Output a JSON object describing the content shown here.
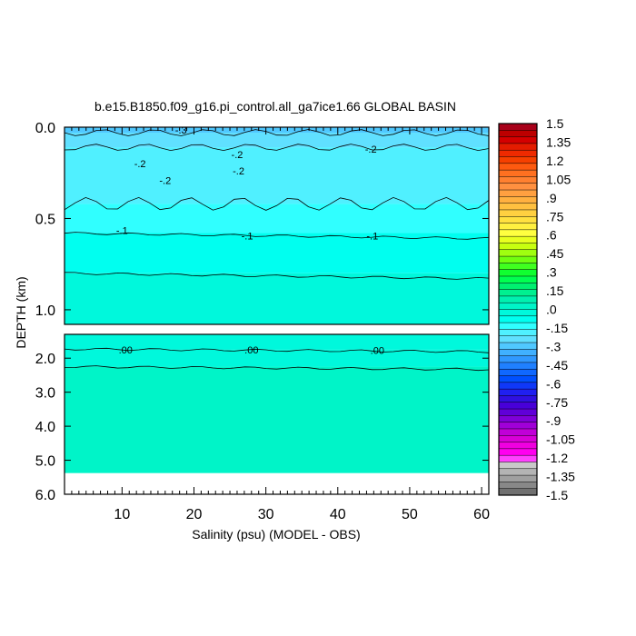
{
  "chart_data": {
    "type": "heatmap",
    "title": "b.e15.B1850.f09_g16.pi_control.all_ga7ice1.66 GLOBAL BASIN",
    "xlabel": "Salinity (psu) (MODEL - OBS)",
    "ylabel": "DEPTH (km)",
    "xlim": [
      2,
      61
    ],
    "x_ticks": [
      "10",
      "20",
      "30",
      "40",
      "50",
      "60"
    ],
    "panels": [
      {
        "name": "upper",
        "ylim": [
          0.0,
          1.08
        ],
        "y_ticks": [
          "0.0",
          "0.5",
          "1.0"
        ],
        "y_tick_values": [
          0.0,
          0.5,
          1.0
        ],
        "bands": [
          {
            "from": 0.0,
            "to": 0.03,
            "value": -0.3
          },
          {
            "from": 0.03,
            "to": 0.11,
            "value": -0.25
          },
          {
            "from": 0.11,
            "to": 0.42,
            "value": -0.2
          },
          {
            "from": 0.42,
            "to": 0.58,
            "value": -0.15
          },
          {
            "from": 0.58,
            "to": 0.8,
            "value": -0.1
          },
          {
            "from": 0.8,
            "to": 1.08,
            "value": -0.05
          }
        ],
        "contour_labels": [
          {
            "text": "-.3",
            "x": 18.2,
            "y": 0.015
          },
          {
            "text": "-.2",
            "x": 26.0,
            "y": 0.15
          },
          {
            "text": "-.2",
            "x": 44.6,
            "y": 0.12
          },
          {
            "text": "-.2",
            "x": 12.5,
            "y": 0.2
          },
          {
            "text": "-.2",
            "x": 26.2,
            "y": 0.24
          },
          {
            "text": "-.2",
            "x": 16.0,
            "y": 0.29
          },
          {
            "text": "-.1",
            "x": 10.0,
            "y": 0.565
          },
          {
            "text": "-.1",
            "x": 27.4,
            "y": 0.595
          },
          {
            "text": "-.1",
            "x": 44.8,
            "y": 0.595
          }
        ]
      },
      {
        "name": "lower",
        "ylim": [
          1.3,
          6.0
        ],
        "y_ticks": [
          "2.0",
          "3.0",
          "4.0",
          "5.0",
          "6.0"
        ],
        "y_tick_values": [
          2.0,
          3.0,
          4.0,
          5.0,
          6.0
        ],
        "data_bottom": 5.38,
        "bands": [
          {
            "from": 1.3,
            "to": 1.73,
            "value": 0.0
          },
          {
            "from": 1.73,
            "to": 2.25,
            "value": 0.0
          },
          {
            "from": 2.25,
            "to": 5.38,
            "value": 0.05
          }
        ],
        "contour_labels": [
          {
            "text": ".00",
            "x": 10.5,
            "y": 1.75
          },
          {
            "text": ".00",
            "x": 28.0,
            "y": 1.75
          },
          {
            "text": ".00",
            "x": 45.5,
            "y": 1.77
          }
        ]
      }
    ],
    "colorbar": {
      "labels": [
        "1.5",
        "1.35",
        "1.2",
        "1.05",
        ".9",
        ".75",
        ".6",
        ".45",
        ".3",
        ".15",
        ".0",
        "-.15",
        "-.3",
        "-.45",
        "-.6",
        "-.75",
        "-.9",
        "-1.05",
        "-1.2",
        "-1.35",
        "-1.5"
      ],
      "colors": [
        "#a8001a",
        "#bc0000",
        "#d40000",
        "#e41c00",
        "#ee2a00",
        "#f54000",
        "#fd5a10",
        "#ff7020",
        "#ff8030",
        "#ff9040",
        "#ffa040",
        "#ffb040",
        "#ffc040",
        "#ffd040",
        "#ffe040",
        "#fff040",
        "#ffff40",
        "#e8ff20",
        "#c8ff10",
        "#a0ff10",
        "#70ff10",
        "#40ff20",
        "#10ff30",
        "#00ff50",
        "#00f070",
        "#00f090",
        "#00f0b0",
        "#00f4c8",
        "#00f8dc",
        "#00fff0",
        "#30ffff",
        "#50f0ff",
        "#60e0ff",
        "#50c8ff",
        "#40b0ff",
        "#3098ff",
        "#2080ff",
        "#1068ff",
        "#0050ff",
        "#1038f8",
        "#2020f0",
        "#3010e0",
        "#4800d8",
        "#6000d8",
        "#8000d8",
        "#a000d8",
        "#c000d8",
        "#d800d8",
        "#f000e0",
        "#ff00f0",
        "#ff40ff",
        "#c8c8c8",
        "#b4b4b4",
        "#a0a0a0",
        "#888888",
        "#707070"
      ]
    }
  }
}
